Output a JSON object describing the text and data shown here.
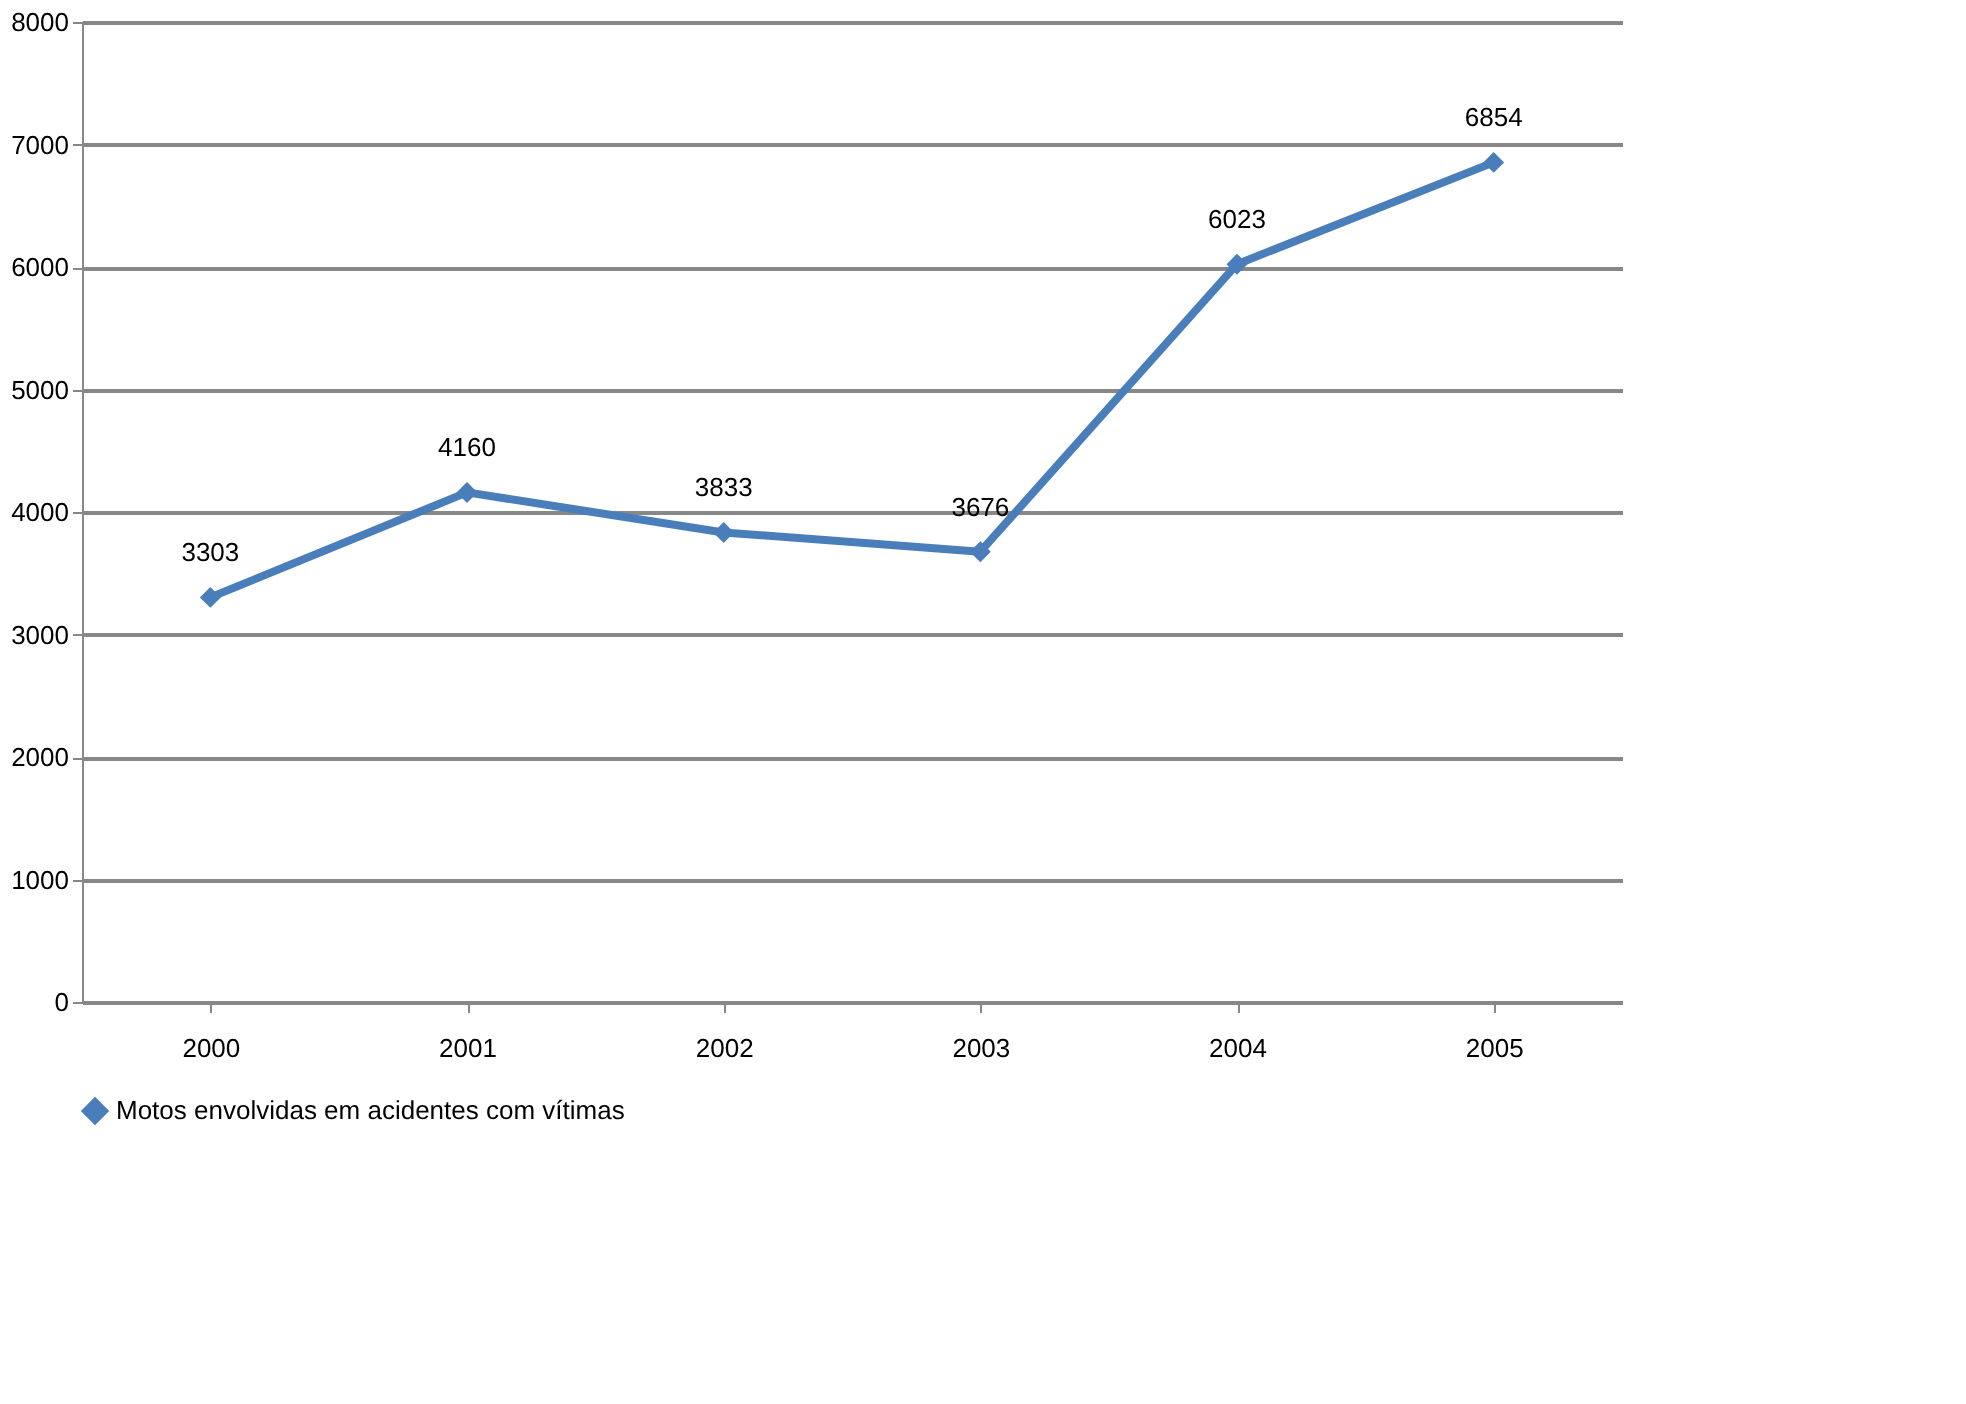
{
  "chart_data": {
    "type": "line",
    "categories": [
      "2000",
      "2001",
      "2002",
      "2003",
      "2004",
      "2005"
    ],
    "series": [
      {
        "name": "Motos envolvidas em acidentes com vítimas",
        "color": "#4a7ebb",
        "values": [
          3303,
          4160,
          3833,
          3676,
          6023,
          6854
        ]
      }
    ],
    "ylim": [
      0,
      8000
    ],
    "yticks": [
      0,
      1000,
      2000,
      3000,
      4000,
      5000,
      6000,
      7000,
      8000
    ],
    "grid": "y",
    "legend": "bottom",
    "marker": "diamond",
    "line_style": "solid",
    "data_labels": true
  }
}
